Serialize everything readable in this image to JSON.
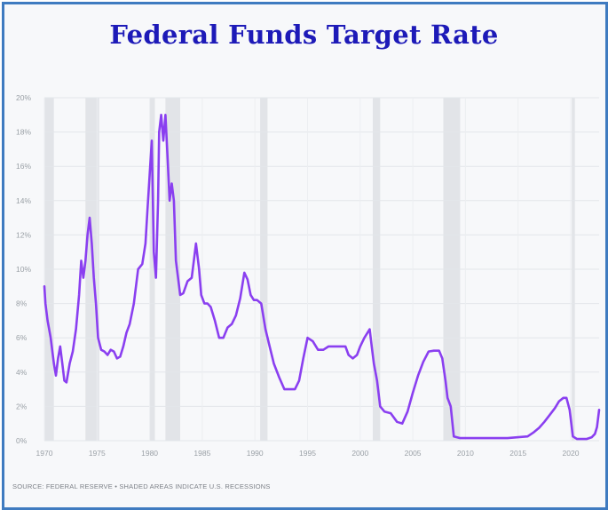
{
  "chart_data": {
    "type": "line",
    "title": "Federal Funds Target Rate",
    "xlabel": "",
    "ylabel": "",
    "xlim": [
      1970,
      2022.7
    ],
    "ylim": [
      0,
      20
    ],
    "grid": true,
    "x_ticks": [
      1970,
      1975,
      1980,
      1985,
      1990,
      1995,
      2000,
      2005,
      2010,
      2015,
      2020
    ],
    "x_tick_labels": [
      "1970",
      "1975",
      "1980",
      "1985",
      "1990",
      "1995",
      "2000",
      "2005",
      "2010",
      "2015",
      "2020"
    ],
    "y_ticks": [
      0,
      2,
      4,
      6,
      8,
      10,
      12,
      14,
      16,
      18,
      20
    ],
    "y_tick_labels": [
      "0%",
      "2%",
      "4%",
      "6%",
      "8%",
      "10%",
      "12%",
      "14%",
      "16%",
      "18%",
      "20%"
    ],
    "line_color": "#8a3ff0",
    "recession_shading_color": "#e2e4e8",
    "recessions": [
      [
        1970.0,
        1970.9
      ],
      [
        1973.9,
        1975.2
      ],
      [
        1980.0,
        1980.5
      ],
      [
        1981.5,
        1982.9
      ],
      [
        1990.5,
        1991.2
      ],
      [
        2001.2,
        2001.9
      ],
      [
        2007.9,
        2009.5
      ],
      [
        2020.1,
        2020.4
      ]
    ],
    "series": [
      {
        "x": [
          1970.0,
          1970.1,
          1970.3,
          1970.6,
          1970.9,
          1971.1,
          1971.3,
          1971.5,
          1971.7,
          1971.9,
          1972.1,
          1972.4,
          1972.7,
          1973.0,
          1973.3,
          1973.5,
          1973.7,
          1973.9,
          1974.1,
          1974.3,
          1974.5,
          1974.7,
          1974.9,
          1975.1,
          1975.4,
          1975.7,
          1976.0,
          1976.3,
          1976.6,
          1976.9,
          1977.2,
          1977.5,
          1977.8,
          1978.1,
          1978.5,
          1978.9,
          1979.3,
          1979.6,
          1979.8,
          1980.0,
          1980.2,
          1980.4,
          1980.6,
          1980.8,
          1980.9,
          1981.1,
          1981.3,
          1981.5,
          1981.7,
          1981.9,
          1982.1,
          1982.3,
          1982.5,
          1982.7,
          1982.9,
          1983.2,
          1983.6,
          1984.0,
          1984.4,
          1984.7,
          1984.9,
          1985.2,
          1985.5,
          1985.8,
          1986.2,
          1986.6,
          1987.0,
          1987.4,
          1987.8,
          1988.2,
          1988.6,
          1989.0,
          1989.3,
          1989.6,
          1989.9,
          1990.2,
          1990.6,
          1991.0,
          1991.4,
          1991.8,
          1992.3,
          1992.8,
          1993.3,
          1993.8,
          1994.2,
          1994.6,
          1995.0,
          1995.5,
          1996.0,
          1996.5,
          1997.0,
          1997.5,
          1998.0,
          1998.6,
          1998.9,
          1999.3,
          1999.7,
          2000.0,
          2000.4,
          2000.9,
          2001.1,
          2001.3,
          2001.6,
          2001.9,
          2002.3,
          2002.9,
          2003.5,
          2004.0,
          2004.5,
          2005.0,
          2005.5,
          2006.0,
          2006.5,
          2007.0,
          2007.5,
          2007.8,
          2008.1,
          2008.3,
          2008.6,
          2008.9,
          2009.5,
          2010.5,
          2012.0,
          2014.0,
          2015.9,
          2016.5,
          2017.0,
          2017.5,
          2018.0,
          2018.5,
          2018.9,
          2019.3,
          2019.6,
          2019.9,
          2020.2,
          2020.6,
          2021.5,
          2022.0,
          2022.3,
          2022.5,
          2022.7
        ],
        "y": [
          9.0,
          8.0,
          7.0,
          6.0,
          4.5,
          3.8,
          4.8,
          5.5,
          4.5,
          3.5,
          3.4,
          4.5,
          5.2,
          6.5,
          8.5,
          10.5,
          9.5,
          10.5,
          12.0,
          13.0,
          11.5,
          9.5,
          8.0,
          6.0,
          5.3,
          5.2,
          5.0,
          5.3,
          5.2,
          4.8,
          4.9,
          5.5,
          6.3,
          6.8,
          8.0,
          10.0,
          10.3,
          11.5,
          13.5,
          15.5,
          17.5,
          11.0,
          9.5,
          14.0,
          18.0,
          19.0,
          17.5,
          19.0,
          16.5,
          14.0,
          15.0,
          14.0,
          10.5,
          9.5,
          8.5,
          8.6,
          9.3,
          9.5,
          11.5,
          10.0,
          8.5,
          8.0,
          8.0,
          7.8,
          7.0,
          6.0,
          6.0,
          6.6,
          6.8,
          7.3,
          8.3,
          9.8,
          9.4,
          8.5,
          8.2,
          8.2,
          8.0,
          6.5,
          5.5,
          4.5,
          3.7,
          3.0,
          3.0,
          3.0,
          3.5,
          4.8,
          6.0,
          5.8,
          5.3,
          5.3,
          5.5,
          5.5,
          5.5,
          5.5,
          5.0,
          4.8,
          5.0,
          5.5,
          6.0,
          6.5,
          5.5,
          4.5,
          3.5,
          2.0,
          1.7,
          1.6,
          1.1,
          1.0,
          1.7,
          2.8,
          3.8,
          4.6,
          5.2,
          5.25,
          5.25,
          4.8,
          3.5,
          2.5,
          2.0,
          0.25,
          0.15,
          0.15,
          0.15,
          0.15,
          0.25,
          0.5,
          0.75,
          1.1,
          1.5,
          1.9,
          2.3,
          2.5,
          2.5,
          1.8,
          0.25,
          0.1,
          0.1,
          0.2,
          0.4,
          0.8,
          1.8
        ]
      }
    ]
  },
  "source_text": "SOURCE: FEDERAL RESERVE • SHADED AREAS INDICATE U.S. RECESSIONS"
}
